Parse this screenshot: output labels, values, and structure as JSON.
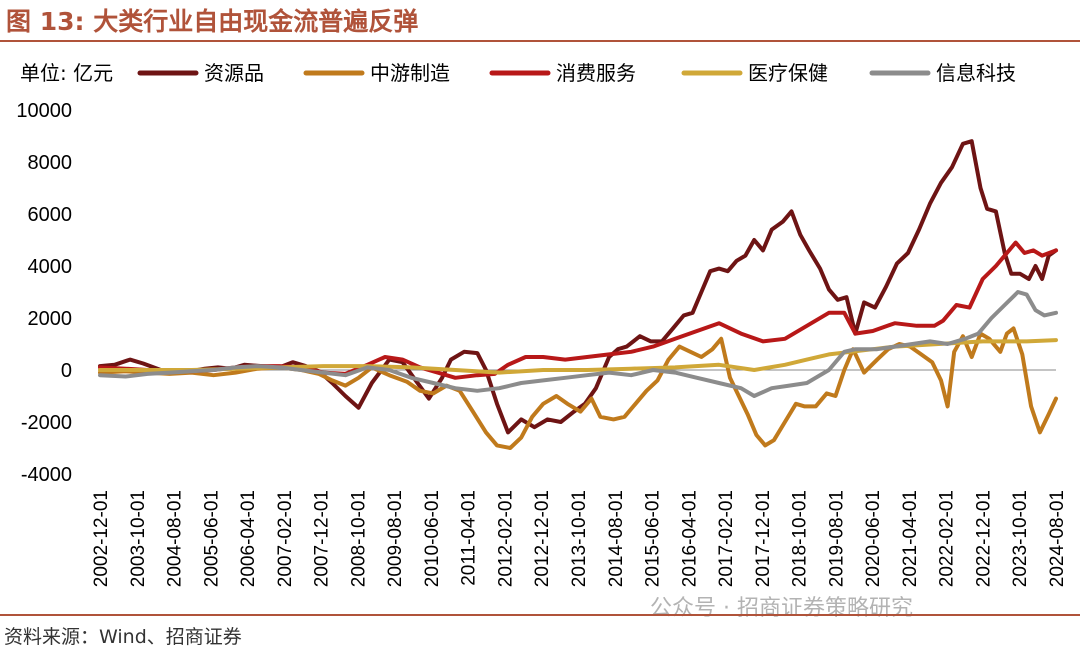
{
  "title": "图 13:  大类行业自由现金流普遍反弹",
  "source": "资料来源：Wind、招商证券",
  "watermark": "公众号 · 招商证券策略研究",
  "chart_data": {
    "type": "line",
    "unit_label": "单位:  亿元",
    "ylim": [
      -4000,
      10000
    ],
    "yticks": [
      10000,
      8000,
      6000,
      4000,
      2000,
      0,
      -2000,
      -4000
    ],
    "x_tick_labels": [
      "2002-12-01",
      "2003-10-01",
      "2004-08-01",
      "2005-06-01",
      "2006-04-01",
      "2007-02-01",
      "2007-12-01",
      "2008-10-01",
      "2009-08-01",
      "2010-06-01",
      "2011-04-01",
      "2012-02-01",
      "2012-12-01",
      "2013-10-01",
      "2014-08-01",
      "2015-06-01",
      "2016-04-01",
      "2017-02-01",
      "2017-12-01",
      "2018-10-01",
      "2019-08-01",
      "2020-06-01",
      "2021-04-01",
      "2022-02-01",
      "2022-12-01",
      "2023-10-01",
      "2024-08-01"
    ],
    "x_range": [
      2002.917,
      2024.667
    ],
    "legend_position": "top",
    "grid": false,
    "series": [
      {
        "name": "资源品",
        "color": "#6e1414",
        "points": [
          [
            2002.917,
            150
          ],
          [
            2003.25,
            200
          ],
          [
            2003.6,
            400
          ],
          [
            2003.9,
            250
          ],
          [
            2004.3,
            0
          ],
          [
            2004.8,
            -100
          ],
          [
            2005.3,
            50
          ],
          [
            2005.6,
            100
          ],
          [
            2005.9,
            50
          ],
          [
            2006.2,
            200
          ],
          [
            2006.6,
            150
          ],
          [
            2007.0,
            100
          ],
          [
            2007.3,
            300
          ],
          [
            2007.6,
            150
          ],
          [
            2007.9,
            -50
          ],
          [
            2008.2,
            -500
          ],
          [
            2008.5,
            -1000
          ],
          [
            2008.8,
            -1450
          ],
          [
            2009.1,
            -500
          ],
          [
            2009.5,
            400
          ],
          [
            2009.8,
            300
          ],
          [
            2010.1,
            -400
          ],
          [
            2010.4,
            -1100
          ],
          [
            2010.7,
            -300
          ],
          [
            2010.9,
            400
          ],
          [
            2011.2,
            700
          ],
          [
            2011.5,
            650
          ],
          [
            2011.7,
            0
          ],
          [
            2011.95,
            -1300
          ],
          [
            2012.2,
            -2400
          ],
          [
            2012.5,
            -1900
          ],
          [
            2012.8,
            -2200
          ],
          [
            2013.1,
            -1900
          ],
          [
            2013.4,
            -2000
          ],
          [
            2013.7,
            -1600
          ],
          [
            2013.95,
            -1300
          ],
          [
            2014.2,
            -700
          ],
          [
            2014.5,
            500
          ],
          [
            2014.7,
            800
          ],
          [
            2014.9,
            900
          ],
          [
            2015.2,
            1300
          ],
          [
            2015.45,
            1100
          ],
          [
            2015.7,
            1100
          ],
          [
            2015.95,
            1600
          ],
          [
            2016.2,
            2100
          ],
          [
            2016.4,
            2200
          ],
          [
            2016.6,
            3000
          ],
          [
            2016.8,
            3800
          ],
          [
            2017.0,
            3900
          ],
          [
            2017.2,
            3800
          ],
          [
            2017.4,
            4200
          ],
          [
            2017.6,
            4400
          ],
          [
            2017.8,
            5000
          ],
          [
            2018.0,
            4600
          ],
          [
            2018.2,
            5400
          ],
          [
            2018.45,
            5700
          ],
          [
            2018.65,
            6100
          ],
          [
            2018.85,
            5200
          ],
          [
            2019.05,
            4600
          ],
          [
            2019.3,
            3900
          ],
          [
            2019.5,
            3100
          ],
          [
            2019.7,
            2700
          ],
          [
            2019.9,
            2800
          ],
          [
            2020.1,
            1400
          ],
          [
            2020.3,
            2600
          ],
          [
            2020.55,
            2400
          ],
          [
            2020.8,
            3200
          ],
          [
            2021.05,
            4100
          ],
          [
            2021.3,
            4500
          ],
          [
            2021.55,
            5400
          ],
          [
            2021.8,
            6400
          ],
          [
            2022.05,
            7200
          ],
          [
            2022.3,
            7800
          ],
          [
            2022.55,
            8700
          ],
          [
            2022.75,
            8800
          ],
          [
            2022.95,
            7000
          ],
          [
            2023.1,
            6200
          ],
          [
            2023.3,
            6100
          ],
          [
            2023.5,
            4500
          ],
          [
            2023.65,
            3700
          ],
          [
            2023.85,
            3700
          ],
          [
            2024.05,
            3500
          ],
          [
            2024.2,
            4000
          ],
          [
            2024.35,
            3500
          ],
          [
            2024.5,
            4400
          ],
          [
            2024.667,
            4600
          ]
        ]
      },
      {
        "name": "中游制造",
        "color": "#c07a1c",
        "points": [
          [
            2002.917,
            -100
          ],
          [
            2003.5,
            -50
          ],
          [
            2004.0,
            -100
          ],
          [
            2004.5,
            -150
          ],
          [
            2005.0,
            -100
          ],
          [
            2005.5,
            -200
          ],
          [
            2006.0,
            -100
          ],
          [
            2006.5,
            50
          ],
          [
            2007.0,
            100
          ],
          [
            2007.5,
            0
          ],
          [
            2007.9,
            -150
          ],
          [
            2008.2,
            -400
          ],
          [
            2008.5,
            -600
          ],
          [
            2008.8,
            -300
          ],
          [
            2009.1,
            100
          ],
          [
            2009.5,
            -200
          ],
          [
            2009.9,
            -450
          ],
          [
            2010.2,
            -800
          ],
          [
            2010.5,
            -900
          ],
          [
            2010.8,
            -600
          ],
          [
            2011.1,
            -800
          ],
          [
            2011.4,
            -1600
          ],
          [
            2011.7,
            -2400
          ],
          [
            2011.95,
            -2900
          ],
          [
            2012.25,
            -3000
          ],
          [
            2012.5,
            -2600
          ],
          [
            2012.75,
            -1800
          ],
          [
            2013.0,
            -1300
          ],
          [
            2013.3,
            -1000
          ],
          [
            2013.55,
            -1300
          ],
          [
            2013.85,
            -1600
          ],
          [
            2014.1,
            -1100
          ],
          [
            2014.3,
            -1800
          ],
          [
            2014.6,
            -1900
          ],
          [
            2014.85,
            -1800
          ],
          [
            2015.1,
            -1300
          ],
          [
            2015.35,
            -800
          ],
          [
            2015.6,
            -400
          ],
          [
            2015.85,
            400
          ],
          [
            2016.1,
            900
          ],
          [
            2016.35,
            700
          ],
          [
            2016.6,
            500
          ],
          [
            2016.85,
            800
          ],
          [
            2017.05,
            1200
          ],
          [
            2017.25,
            -300
          ],
          [
            2017.45,
            -1000
          ],
          [
            2017.65,
            -1700
          ],
          [
            2017.85,
            -2500
          ],
          [
            2018.05,
            -2900
          ],
          [
            2018.25,
            -2700
          ],
          [
            2018.5,
            -2000
          ],
          [
            2018.75,
            -1300
          ],
          [
            2018.95,
            -1400
          ],
          [
            2019.2,
            -1400
          ],
          [
            2019.45,
            -900
          ],
          [
            2019.65,
            -1000
          ],
          [
            2019.85,
            0
          ],
          [
            2020.05,
            800
          ],
          [
            2020.3,
            -100
          ],
          [
            2020.6,
            400
          ],
          [
            2020.85,
            800
          ],
          [
            2021.1,
            1000
          ],
          [
            2021.35,
            900
          ],
          [
            2021.6,
            600
          ],
          [
            2021.85,
            300
          ],
          [
            2022.05,
            -400
          ],
          [
            2022.2,
            -1400
          ],
          [
            2022.35,
            700
          ],
          [
            2022.55,
            1300
          ],
          [
            2022.75,
            500
          ],
          [
            2022.95,
            1400
          ],
          [
            2023.15,
            1200
          ],
          [
            2023.4,
            700
          ],
          [
            2023.55,
            1400
          ],
          [
            2023.7,
            1600
          ],
          [
            2023.9,
            600
          ],
          [
            2024.1,
            -1400
          ],
          [
            2024.3,
            -2400
          ],
          [
            2024.5,
            -1700
          ],
          [
            2024.667,
            -1100
          ]
        ]
      },
      {
        "name": "消费服务",
        "color": "#b81818",
        "points": [
          [
            2002.917,
            100
          ],
          [
            2003.5,
            50
          ],
          [
            2004.0,
            0
          ],
          [
            2004.5,
            -50
          ],
          [
            2005.0,
            -50
          ],
          [
            2005.5,
            0
          ],
          [
            2006.0,
            100
          ],
          [
            2006.5,
            150
          ],
          [
            2007.0,
            150
          ],
          [
            2007.5,
            100
          ],
          [
            2008.0,
            -100
          ],
          [
            2008.5,
            -150
          ],
          [
            2009.0,
            200
          ],
          [
            2009.4,
            500
          ],
          [
            2009.8,
            400
          ],
          [
            2010.2,
            100
          ],
          [
            2010.6,
            -100
          ],
          [
            2011.0,
            -300
          ],
          [
            2011.5,
            -200
          ],
          [
            2011.9,
            -150
          ],
          [
            2012.2,
            200
          ],
          [
            2012.6,
            500
          ],
          [
            2013.0,
            500
          ],
          [
            2013.5,
            400
          ],
          [
            2014.0,
            500
          ],
          [
            2014.5,
            600
          ],
          [
            2015.0,
            700
          ],
          [
            2015.5,
            900
          ],
          [
            2016.0,
            1200
          ],
          [
            2016.5,
            1500
          ],
          [
            2017.0,
            1800
          ],
          [
            2017.5,
            1400
          ],
          [
            2018.0,
            1100
          ],
          [
            2018.5,
            1200
          ],
          [
            2019.0,
            1700
          ],
          [
            2019.5,
            2200
          ],
          [
            2019.85,
            2200
          ],
          [
            2020.1,
            1400
          ],
          [
            2020.5,
            1500
          ],
          [
            2021.0,
            1800
          ],
          [
            2021.5,
            1700
          ],
          [
            2021.9,
            1700
          ],
          [
            2022.1,
            1900
          ],
          [
            2022.4,
            2500
          ],
          [
            2022.7,
            2400
          ],
          [
            2023.0,
            3500
          ],
          [
            2023.3,
            4000
          ],
          [
            2023.55,
            4500
          ],
          [
            2023.75,
            4900
          ],
          [
            2023.95,
            4500
          ],
          [
            2024.15,
            4600
          ],
          [
            2024.35,
            4400
          ],
          [
            2024.667,
            4600
          ]
        ]
      },
      {
        "name": "医疗保健",
        "color": "#d0a838",
        "points": [
          [
            2002.917,
            0
          ],
          [
            2004.0,
            0
          ],
          [
            2005.0,
            0
          ],
          [
            2006.0,
            50
          ],
          [
            2007.0,
            100
          ],
          [
            2008.0,
            150
          ],
          [
            2009.0,
            150
          ],
          [
            2010.0,
            100
          ],
          [
            2011.0,
            0
          ],
          [
            2012.0,
            -100
          ],
          [
            2013.0,
            0
          ],
          [
            2014.0,
            0
          ],
          [
            2015.0,
            50
          ],
          [
            2016.0,
            100
          ],
          [
            2017.0,
            200
          ],
          [
            2017.8,
            0
          ],
          [
            2018.5,
            200
          ],
          [
            2019.0,
            400
          ],
          [
            2019.5,
            600
          ],
          [
            2020.0,
            700
          ],
          [
            2020.5,
            800
          ],
          [
            2021.0,
            900
          ],
          [
            2022.0,
            1000
          ],
          [
            2023.0,
            1100
          ],
          [
            2024.0,
            1100
          ],
          [
            2024.667,
            1150
          ]
        ]
      },
      {
        "name": "信息科技",
        "color": "#8c8c8c",
        "points": [
          [
            2002.917,
            -200
          ],
          [
            2003.5,
            -250
          ],
          [
            2004.0,
            -150
          ],
          [
            2004.5,
            -100
          ],
          [
            2005.0,
            -50
          ],
          [
            2005.5,
            0
          ],
          [
            2006.0,
            100
          ],
          [
            2006.5,
            150
          ],
          [
            2007.0,
            100
          ],
          [
            2007.5,
            0
          ],
          [
            2008.0,
            -100
          ],
          [
            2008.5,
            -200
          ],
          [
            2009.0,
            100
          ],
          [
            2009.5,
            0
          ],
          [
            2010.0,
            -300
          ],
          [
            2010.5,
            -500
          ],
          [
            2011.0,
            -700
          ],
          [
            2011.5,
            -800
          ],
          [
            2012.0,
            -700
          ],
          [
            2012.5,
            -500
          ],
          [
            2013.0,
            -400
          ],
          [
            2013.5,
            -300
          ],
          [
            2014.0,
            -200
          ],
          [
            2014.5,
            -100
          ],
          [
            2015.0,
            -200
          ],
          [
            2015.5,
            0
          ],
          [
            2016.0,
            -100
          ],
          [
            2016.5,
            -300
          ],
          [
            2017.0,
            -500
          ],
          [
            2017.5,
            -700
          ],
          [
            2017.8,
            -1000
          ],
          [
            2018.2,
            -700
          ],
          [
            2018.6,
            -600
          ],
          [
            2019.0,
            -500
          ],
          [
            2019.5,
            0
          ],
          [
            2019.85,
            700
          ],
          [
            2020.1,
            800
          ],
          [
            2020.6,
            800
          ],
          [
            2021.0,
            900
          ],
          [
            2021.4,
            1000
          ],
          [
            2021.8,
            1100
          ],
          [
            2022.2,
            1000
          ],
          [
            2022.6,
            1200
          ],
          [
            2022.9,
            1400
          ],
          [
            2023.2,
            2000
          ],
          [
            2023.5,
            2500
          ],
          [
            2023.8,
            3000
          ],
          [
            2024.0,
            2900
          ],
          [
            2024.2,
            2300
          ],
          [
            2024.4,
            2100
          ],
          [
            2024.667,
            2200
          ]
        ]
      }
    ]
  }
}
